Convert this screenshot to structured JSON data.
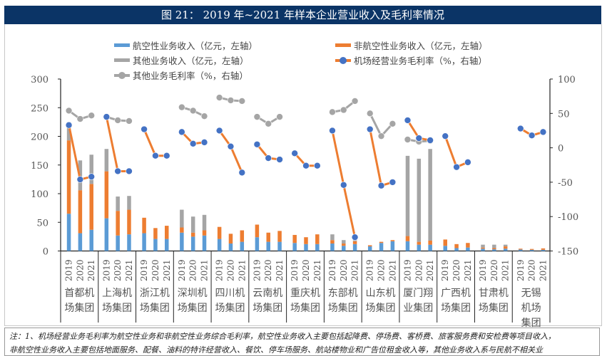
{
  "title": "图 21：  2019 年~2021 年样本企业营业收入及毛利率情况",
  "legend": {
    "aero": "航空性业务收入（亿元，左轴）",
    "nonaero": "非航空性业务收入（亿元，左轴）",
    "other": "其他业务收入（亿元，左轴）",
    "airport_margin": "机场经营业务毛利率（%，右轴）",
    "other_margin": "其他业务毛利率（%，右轴）"
  },
  "note": {
    "line1": "注：1、机场经营业务毛利率为航空性业务和非航空性业务综合毛利率，航空性业务收入主要包括起降费、停场费、客桥费、旅客服务费和安检费等项目收入，",
    "line2": "非航空性业务收入主要包括地面服务、配餐、油料的特许经营收入、餐饮、停车场服务、航站楼物业和广告位租金收入等，其他业务收入系与民航不相关业"
  },
  "chart_data": {
    "type": "bar",
    "stacked": true,
    "colors": {
      "aero": "#5b9bd5",
      "nonaero": "#ed7d31",
      "other": "#a5a5a5",
      "airport_margin_marker": "#4472c4",
      "airport_margin_line": "#ed7d31",
      "other_margin": "#a5a5a5"
    },
    "groups": [
      "首都机\n场集团",
      "上海机\n场集团",
      "浙江机\n场集团",
      "深圳机\n场集团",
      "四川机\n场集团",
      "云南机\n场集团",
      "重庆机\n场集团",
      "东部机\n场集团",
      "山东机\n场集团",
      "厦门翔\n业集团",
      "广西机\n场集团",
      "甘肃机\n场集团",
      "无锡\n机场\n集团"
    ],
    "years": [
      "2019",
      "2020",
      "2021"
    ],
    "y_left": {
      "min": 0,
      "max": 300,
      "ticks": [
        0,
        50,
        100,
        150,
        200,
        250,
        300
      ]
    },
    "y_right": {
      "min": -150,
      "max": 100,
      "ticks": [
        -150,
        -100,
        -50,
        0,
        50,
        100
      ]
    },
    "grid": false,
    "legend_position": "top",
    "series": [
      {
        "name": "航空性业务收入（亿元，左轴）",
        "axis": "left",
        "kind": "bar",
        "values": [
          [
            65,
            31,
            37
          ],
          [
            57,
            27,
            29
          ],
          [
            31,
            21,
            21
          ],
          [
            32,
            25,
            27
          ],
          [
            21,
            13,
            16
          ],
          [
            24,
            16,
            16
          ],
          [
            14,
            12,
            12
          ],
          [
            13,
            9,
            12
          ],
          [
            8,
            14,
            17
          ],
          [
            17,
            11,
            11
          ],
          [
            9,
            5,
            6
          ],
          [
            4,
            3,
            4
          ],
          [
            2.5,
            2,
            2
          ]
        ]
      },
      {
        "name": "非航空性业务收入（亿元，左轴）",
        "axis": "left",
        "kind": "bar",
        "values": [
          [
            128,
            75,
            80
          ],
          [
            82,
            43,
            43
          ],
          [
            27,
            19,
            23
          ],
          [
            9,
            7,
            9
          ],
          [
            21,
            17,
            20
          ],
          [
            22,
            16,
            19
          ],
          [
            14,
            12,
            17
          ],
          [
            6,
            4,
            5
          ],
          [
            2,
            2,
            2
          ],
          [
            9,
            5,
            7
          ],
          [
            11,
            7,
            8
          ],
          [
            2,
            2,
            4
          ],
          [
            1.5,
            1.5,
            2.5
          ]
        ]
      },
      {
        "name": "其他业务收入（亿元，左轴）",
        "axis": "left",
        "kind": "bar",
        "values": [
          [
            32,
            52,
            51
          ],
          [
            39,
            25,
            24
          ],
          [
            0,
            0,
            0
          ],
          [
            31,
            28,
            27
          ],
          [
            0,
            0,
            0
          ],
          [
            0,
            0,
            0
          ],
          [
            0,
            0,
            0
          ],
          [
            10,
            6,
            2
          ],
          [
            0,
            0,
            0
          ],
          [
            140,
            145,
            160
          ],
          [
            0,
            0,
            0
          ],
          [
            5,
            6,
            3
          ],
          [
            0,
            0,
            0
          ]
        ]
      },
      {
        "name": "机场经营业务毛利率（%，右轴）",
        "axis": "right",
        "kind": "line",
        "values": [
          [
            33,
            -46,
            -42
          ],
          [
            45,
            -34,
            -34
          ],
          [
            27,
            -11.5,
            -11.5
          ],
          [
            23,
            6,
            8
          ],
          [
            25,
            2,
            -36
          ],
          [
            5,
            -15,
            -17
          ],
          [
            -8,
            -26,
            -26
          ],
          [
            25,
            -54,
            -130
          ],
          [
            27,
            -55,
            -50
          ],
          [
            40,
            14,
            11
          ],
          [
            17,
            -28,
            -21
          ],
          [
            null,
            null,
            null
          ],
          [
            28,
            18,
            23
          ]
        ]
      },
      {
        "name": "其他业务毛利率（%，右轴）",
        "axis": "right",
        "kind": "line",
        "values": [
          [
            54,
            42,
            47
          ],
          [
            45,
            40,
            39
          ],
          [
            null,
            null,
            null
          ],
          [
            59,
            54,
            46
          ],
          [
            73,
            69,
            68
          ],
          [
            45,
            35,
            45
          ],
          [
            null,
            null,
            null
          ],
          [
            52,
            55,
            68
          ],
          [
            50,
            17,
            35
          ],
          [
            12,
            9,
            10
          ],
          [
            null,
            null,
            null
          ],
          [
            null,
            null,
            null
          ],
          [
            null,
            null,
            null
          ]
        ]
      }
    ]
  }
}
